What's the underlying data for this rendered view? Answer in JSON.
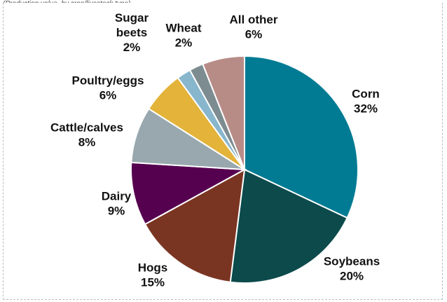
{
  "header": {
    "clipped_text": "(Production value, by crop/livestock type)"
  },
  "chart_data": {
    "type": "pie",
    "title": "",
    "slices": [
      {
        "name": "Corn",
        "value": 32,
        "label": "32%",
        "color": "#007b93"
      },
      {
        "name": "Soybeans",
        "value": 20,
        "label": "20%",
        "color": "#0c4a4c"
      },
      {
        "name": "Hogs",
        "value": 15,
        "label": "15%",
        "color": "#7a3522"
      },
      {
        "name": "Dairy",
        "value": 9,
        "label": "9%",
        "color": "#560050"
      },
      {
        "name": "Cattle/calves",
        "value": 8,
        "label": "8%",
        "color": "#98a8ae"
      },
      {
        "name": "Poultry/eggs",
        "value": 6,
        "label": "6%",
        "color": "#e3b33a"
      },
      {
        "name": "Sugar beets",
        "value": 2,
        "label": "2%",
        "color": "#87b6cd"
      },
      {
        "name": "Wheat",
        "value": 2,
        "label": "2%",
        "color": "#7d8c90"
      },
      {
        "name": "All other",
        "value": 6,
        "label": "6%",
        "color": "#b78c87"
      }
    ]
  }
}
